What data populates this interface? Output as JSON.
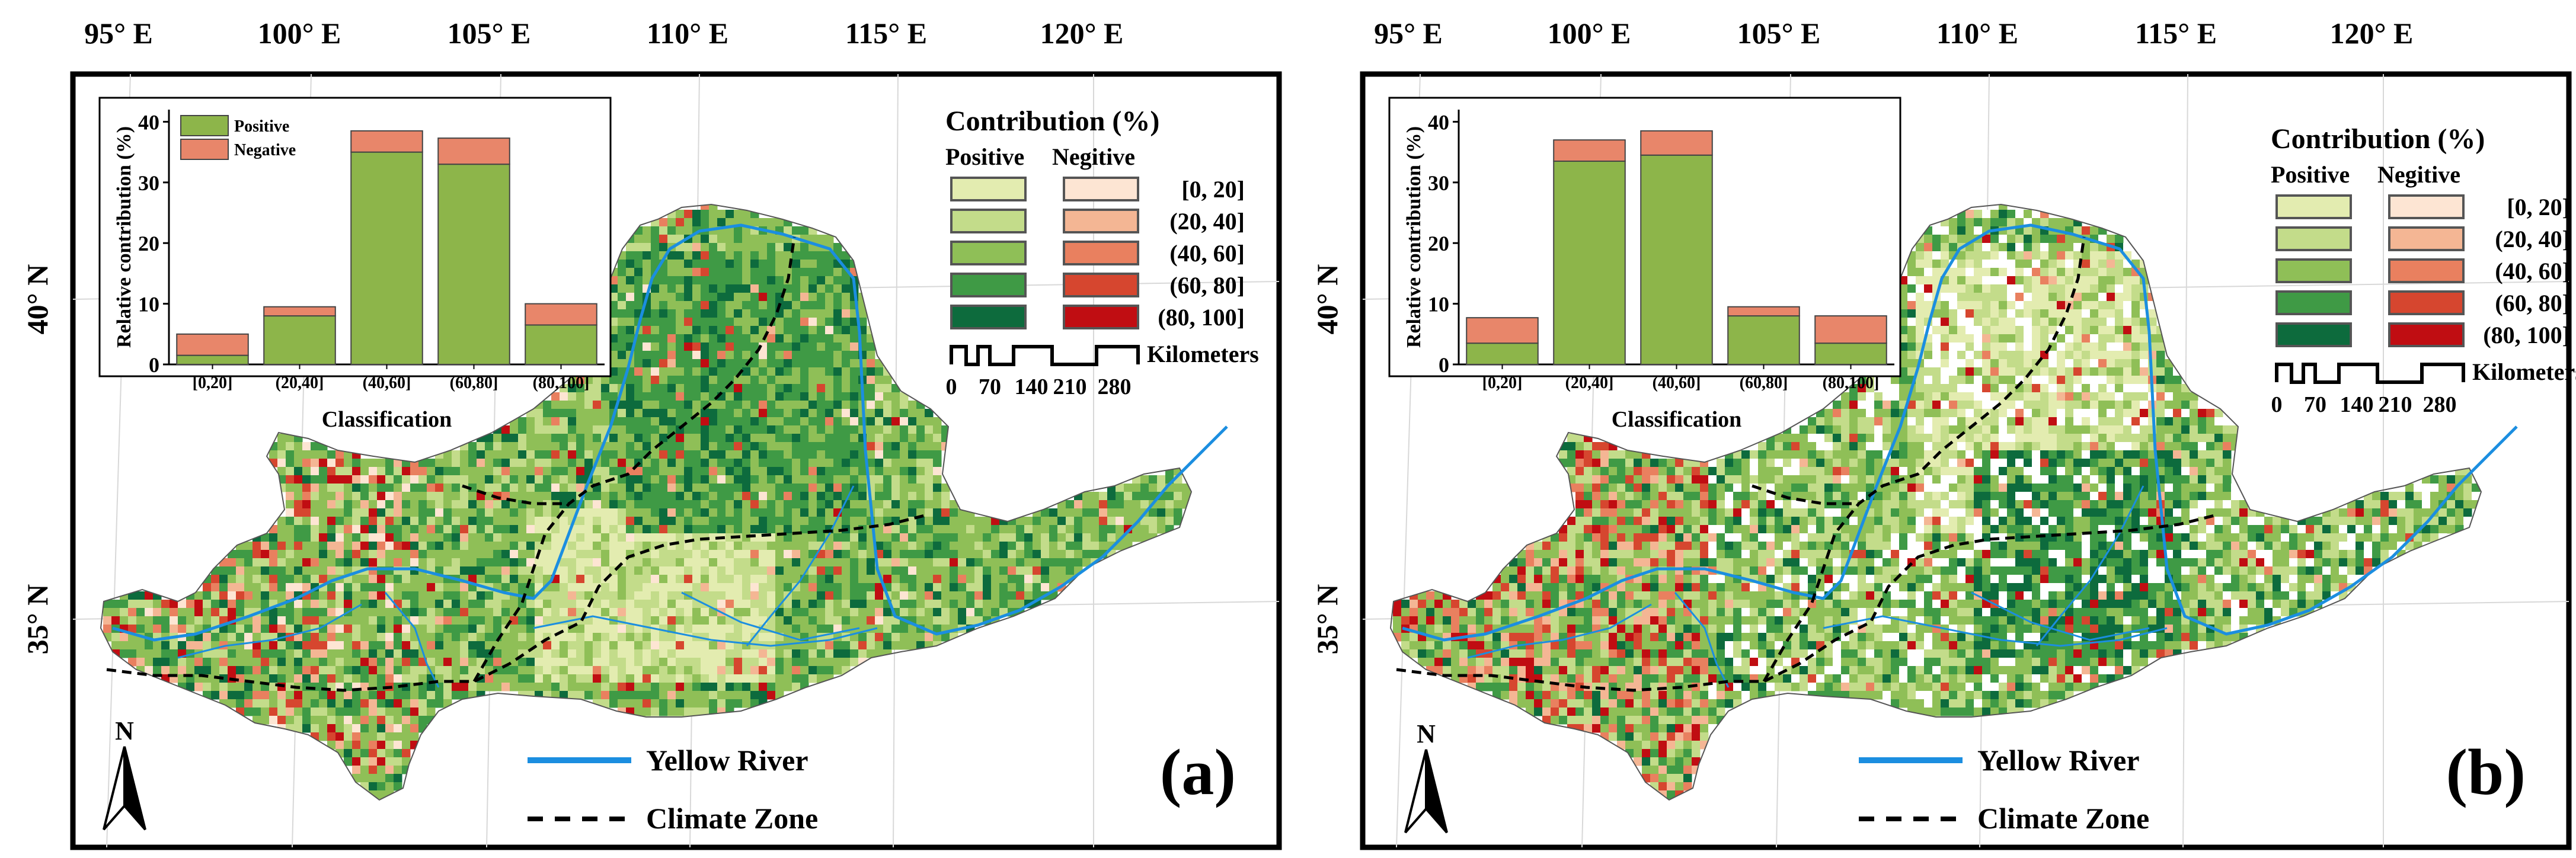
{
  "panels": [
    {
      "id": "a",
      "label": "(a)",
      "lon_labels": [
        "95° E",
        "100° E",
        "105° E",
        "110° E",
        "115° E",
        "120° E"
      ],
      "lat_labels": [
        "40° N",
        "35° N"
      ],
      "legend": {
        "title": "Contribution (%)",
        "positive_header": "Positive",
        "negative_header": "Negitive",
        "classes": [
          "[0, 20]",
          "(20, 40]",
          "(40, 60]",
          "(60, 80]",
          "(80, 100]"
        ],
        "positive_colors": [
          "#e3ecb0",
          "#c3dc8a",
          "#8fbf57",
          "#3f9a45",
          "#0d6b3d"
        ],
        "negative_colors": [
          "#fde5d3",
          "#f4b694",
          "#e9805f",
          "#d6462f",
          "#c00d12"
        ]
      },
      "scalebar": {
        "ticks": [
          "0",
          "70",
          "140",
          "210",
          "280"
        ],
        "unit": "Kilometers"
      },
      "map_legend": {
        "river": "Yellow River",
        "climate": "Climate Zone",
        "river_color": "#1b8ee0"
      },
      "north_label": "N",
      "chart_data": {
        "type": "bar",
        "stacked": true,
        "categories": [
          "[0,20]",
          "(20,40]",
          "(40,60]",
          "(60,80]",
          "(80,100]"
        ],
        "series": [
          {
            "name": "Positive",
            "values": [
              1.5,
              8,
              35,
              33,
              6.5
            ],
            "color": "#8db54a"
          },
          {
            "name": "Negative",
            "values": [
              3.5,
              1.5,
              3.5,
              4.3,
              3.5
            ],
            "color": "#e8866a"
          }
        ],
        "xlabel": "Classification",
        "ylabel": "Relative contribution (%)",
        "ylim": [
          0,
          42
        ],
        "yticks": [
          0,
          10,
          20,
          30,
          40
        ],
        "legend": [
          "Positive",
          "Negative"
        ],
        "legend_position": "top-left"
      }
    },
    {
      "id": "b",
      "label": "(b)",
      "lon_labels": [
        "95° E",
        "100° E",
        "105° E",
        "110° E",
        "115° E",
        "120° E"
      ],
      "lat_labels": [
        "40° N",
        "35° N"
      ],
      "legend": {
        "title": "Contribution (%)",
        "positive_header": "Positive",
        "negative_header": "Negitive",
        "classes": [
          "[0, 20]",
          "(20, 40]",
          "(40, 60]",
          "(60, 80]",
          "(80, 100]"
        ],
        "positive_colors": [
          "#e3ecb0",
          "#c3dc8a",
          "#8fbf57",
          "#3f9a45",
          "#0d6b3d"
        ],
        "negative_colors": [
          "#fde5d3",
          "#f4b694",
          "#e9805f",
          "#d6462f",
          "#c00d12"
        ]
      },
      "scalebar": {
        "ticks": [
          "0",
          "70",
          "140",
          "210",
          "280"
        ],
        "unit": "Kilometers"
      },
      "map_legend": {
        "river": "Yellow River",
        "climate": "Climate Zone",
        "river_color": "#1b8ee0"
      },
      "north_label": "N",
      "chart_data": {
        "type": "bar",
        "stacked": true,
        "categories": [
          "[0,20]",
          "(20,40]",
          "(40,60]",
          "(60,80]",
          "(80,100]"
        ],
        "series": [
          {
            "name": "Positive",
            "values": [
              3.5,
              33.5,
              34.5,
              8,
              3.5
            ],
            "color": "#8db54a"
          },
          {
            "name": "Negative",
            "values": [
              4.2,
              3.5,
              4,
              1.5,
              4.5
            ],
            "color": "#e8866a"
          }
        ],
        "xlabel": "Classification",
        "ylabel": "Relative contribution (%)",
        "ylim": [
          0,
          42
        ],
        "yticks": [
          0,
          10,
          20,
          30,
          40
        ]
      }
    }
  ]
}
